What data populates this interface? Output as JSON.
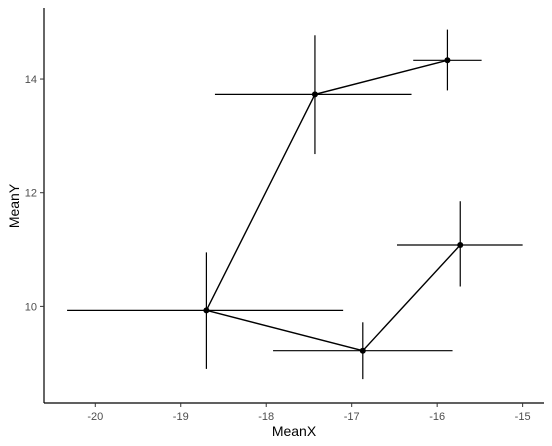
{
  "chart_data": {
    "type": "scatter",
    "xlabel": "MeanX",
    "ylabel": "MeanY",
    "xlim": [
      -20.6,
      -14.75
    ],
    "ylim": [
      8.3,
      15.25
    ],
    "xticks": [
      {
        "value": -20,
        "label": "-20"
      },
      {
        "value": -19,
        "label": "-19"
      },
      {
        "value": -18,
        "label": "-18"
      },
      {
        "value": -17,
        "label": "-17"
      },
      {
        "value": -16,
        "label": "-16"
      },
      {
        "value": -15,
        "label": "-15"
      }
    ],
    "yticks": [
      {
        "value": 10,
        "label": "10"
      },
      {
        "value": 12,
        "label": "12"
      },
      {
        "value": 14,
        "label": "14"
      }
    ],
    "grid": false,
    "lines": [
      {
        "name": "path-1",
        "points": [
          0,
          1,
          2
        ]
      },
      {
        "name": "path-2",
        "points": [
          0,
          3,
          4
        ]
      }
    ],
    "points": [
      {
        "x": -18.7,
        "y": 9.93,
        "xmin": -20.33,
        "xmax": -17.1,
        "ymin": 8.9,
        "ymax": 10.95
      },
      {
        "x": -17.43,
        "y": 13.73,
        "xmin": -18.6,
        "xmax": -16.3,
        "ymin": 12.68,
        "ymax": 14.77
      },
      {
        "x": -15.88,
        "y": 14.33,
        "xmin": -16.28,
        "xmax": -15.48,
        "ymin": 13.8,
        "ymax": 14.87
      },
      {
        "x": -16.87,
        "y": 9.22,
        "xmin": -17.92,
        "xmax": -15.82,
        "ymin": 8.72,
        "ymax": 9.72
      },
      {
        "x": -15.73,
        "y": 11.08,
        "xmin": -16.47,
        "xmax": -15.0,
        "ymin": 10.35,
        "ymax": 11.85
      }
    ]
  }
}
